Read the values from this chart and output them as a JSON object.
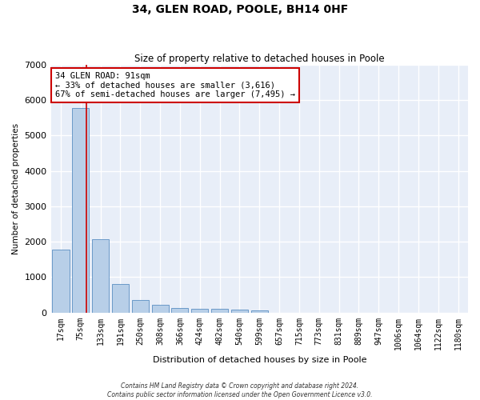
{
  "title": "34, GLEN ROAD, POOLE, BH14 0HF",
  "subtitle": "Size of property relative to detached houses in Poole",
  "xlabel": "Distribution of detached houses by size in Poole",
  "ylabel": "Number of detached properties",
  "bin_labels": [
    "17sqm",
    "75sqm",
    "133sqm",
    "191sqm",
    "250sqm",
    "308sqm",
    "366sqm",
    "424sqm",
    "482sqm",
    "540sqm",
    "599sqm",
    "657sqm",
    "715sqm",
    "773sqm",
    "831sqm",
    "889sqm",
    "947sqm",
    "1006sqm",
    "1064sqm",
    "1122sqm",
    "1180sqm"
  ],
  "bar_values": [
    1780,
    5770,
    2060,
    810,
    360,
    210,
    120,
    110,
    100,
    75,
    60,
    0,
    0,
    0,
    0,
    0,
    0,
    0,
    0,
    0,
    0
  ],
  "bar_color": "#b8cfe8",
  "bar_edge_color": "#5a8fc2",
  "annotation_text": "34 GLEN ROAD: 91sqm\n← 33% of detached houses are smaller (3,616)\n67% of semi-detached houses are larger (7,495) →",
  "annotation_box_color": "#ffffff",
  "annotation_box_edge": "#cc0000",
  "vline_color": "#cc0000",
  "ylim": [
    0,
    7000
  ],
  "yticks": [
    0,
    1000,
    2000,
    3000,
    4000,
    5000,
    6000,
    7000
  ],
  "background_color": "#e8eef8",
  "grid_color": "#ffffff",
  "footer_line1": "Contains HM Land Registry data © Crown copyright and database right 2024.",
  "footer_line2": "Contains public sector information licensed under the Open Government Licence v3.0."
}
